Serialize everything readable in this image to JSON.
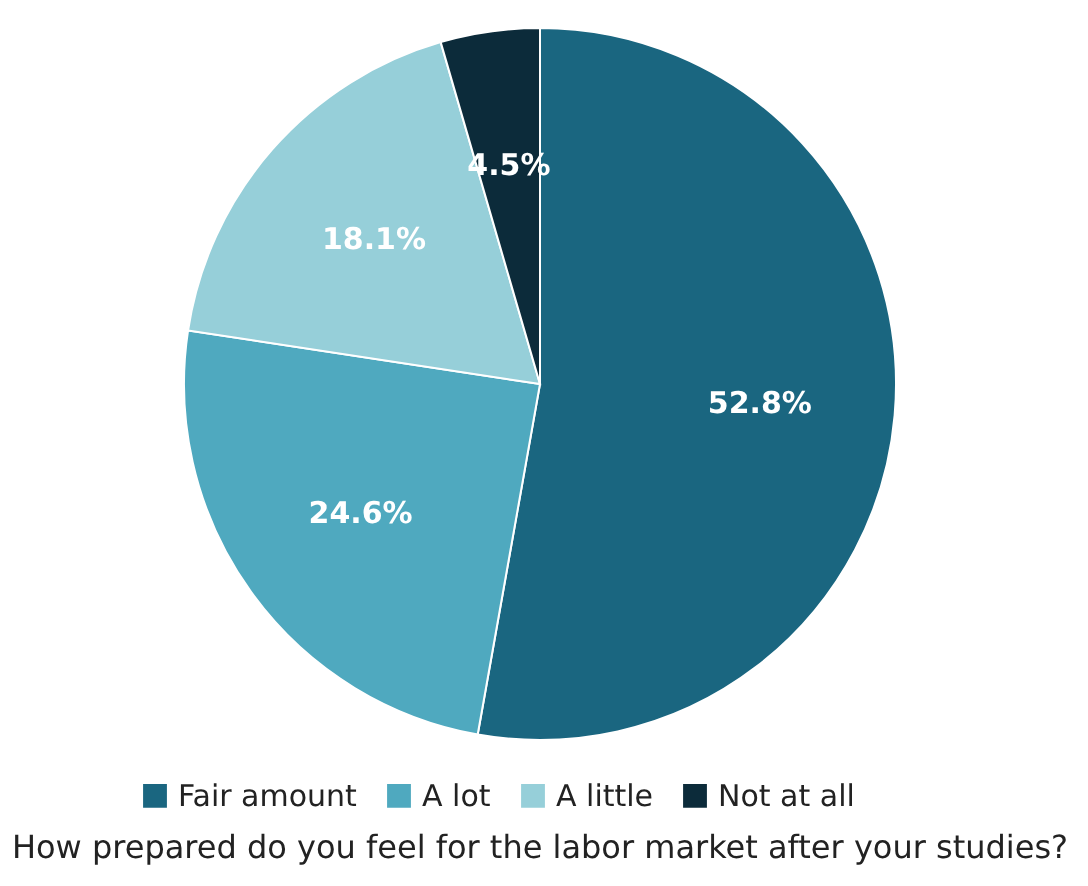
{
  "chart_data": {
    "type": "pie",
    "title": "How prepared do you feel for the labor market after your studies?",
    "categories": [
      "Fair amount",
      "A lot",
      "A little",
      "Not at all"
    ],
    "values": [
      52.8,
      24.6,
      18.1,
      4.5
    ],
    "colors": [
      "#1a6680",
      "#4fa9bf",
      "#96cfd9",
      "#0c2b3a"
    ],
    "value_labels": [
      "52.8%",
      "24.6%",
      "18.1%",
      "4.5%"
    ],
    "legend": "bottom"
  }
}
